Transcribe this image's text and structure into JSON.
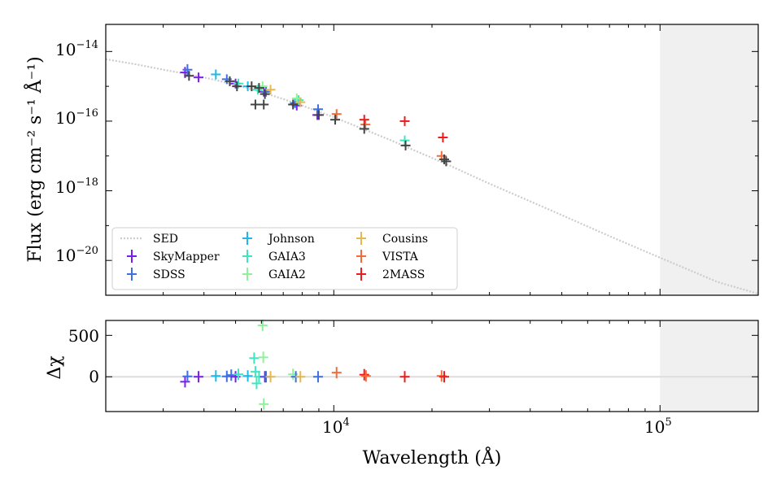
{
  "chart_data": [
    {
      "type": "scatter",
      "panel": "top",
      "xlabel": "Wavelength (Å)",
      "ylabel": "Flux (erg cm⁻² s⁻¹ Å⁻¹)",
      "x_scale": "log",
      "y_scale": "log",
      "xlim": [
        2000,
        200000
      ],
      "ylim": [
        1e-21,
        6e-14
      ],
      "grid": false,
      "legend_placement": "lower-left",
      "y_tick_labels": [
        "10",
        "10",
        "10",
        "10"
      ],
      "y_tick_exponents": [
        "−14",
        "−16",
        "−18",
        "−20"
      ],
      "y_ticks": [
        1e-14,
        1e-16,
        1e-18,
        1e-20
      ],
      "shaded_region_x": [
        100000,
        200000
      ],
      "sed_curve": {
        "name": "SED",
        "color": "#cccccc",
        "x": [
          2000,
          2500,
          3000,
          3500,
          4000,
          4500,
          5000,
          6000,
          7000,
          8000,
          10000,
          12500,
          15000,
          17500,
          22000,
          30000,
          40000,
          50000,
          70000,
          100000,
          150000,
          200000
        ],
        "y": [
          6e-15,
          4.2e-15,
          3e-15,
          2.3e-15,
          1.8e-15,
          1.4e-15,
          1.1e-15,
          6.8e-16,
          4.3e-16,
          2.8e-16,
          1.3e-16,
          5.6e-17,
          2.8e-17,
          1.5e-17,
          6e-18,
          1.6e-18,
          5e-19,
          2e-19,
          5e-20,
          1.2e-20,
          2.4e-21,
          1.1e-21
        ]
      },
      "series": [
        {
          "name": "SkyMapper",
          "color": "#7d1cf0",
          "x": [
            3500,
            3850,
            5000,
            6100,
            7700,
            8900
          ],
          "y": [
            2.5e-15,
            1.8e-15,
            1.2e-15,
            7e-16,
            2.8e-16,
            1.5e-16
          ],
          "yerr": [
            0.6,
            0.5,
            0.5,
            0.5,
            0.5,
            0.5
          ]
        },
        {
          "name": "SDSS",
          "color": "#3f6fe0",
          "x": [
            3560,
            4700,
            6200,
            7600,
            8950
          ],
          "y": [
            3e-15,
            1.6e-15,
            7e-16,
            3.3e-16,
            2.2e-16
          ],
          "yerr": [
            0.6,
            0.5,
            0.5,
            0.5,
            0.5
          ]
        },
        {
          "name": "Johnson",
          "color": "#1fb8e8",
          "x": [
            4350,
            5450
          ],
          "y": [
            2.2e-15,
            1e-15
          ],
          "yerr": [
            0.5,
            0.5
          ]
        },
        {
          "name": "GAIA3",
          "color": "#3ee6c0",
          "x": [
            5100,
            5850,
            7800,
            16500
          ],
          "y": [
            1.2e-15,
            8e-16,
            4e-16,
            2.8e-17
          ],
          "yerr": [
            0.5,
            0.5,
            0.5,
            0.5
          ]
        },
        {
          "name": "GAIA2",
          "color": "#8ff29a",
          "x": [
            6050,
            7700
          ],
          "y": [
            1e-15,
            4.5e-16
          ],
          "yerr": [
            0.5,
            0.5
          ]
        },
        {
          "name": "Cousins",
          "color": "#e8b850",
          "x": [
            6400,
            7900
          ],
          "y": [
            8e-16,
            3.5e-16
          ],
          "yerr": [
            0.5,
            0.5
          ]
        },
        {
          "name": "VISTA",
          "color": "#f46a3a",
          "x": [
            10200,
            12500,
            21400
          ],
          "y": [
            1.6e-16,
            8e-17,
            1e-17
          ],
          "yerr": [
            0.5,
            0.5,
            0.5
          ]
        },
        {
          "name": "2MASS",
          "color": "#ee1c1c",
          "x": [
            12400,
            16500,
            21600
          ],
          "y": [
            1.1e-16,
            1e-16,
            3.4e-17
          ],
          "yerr": [
            0.5,
            0.5,
            0.5
          ]
        },
        {
          "name": "",
          "color": "#444444",
          "x": [
            3600,
            4800,
            5050,
            5600,
            5900,
            6150,
            5750,
            6100,
            7500,
            9000,
            10100,
            12400,
            16600,
            21800,
            22100
          ],
          "y": [
            2e-15,
            1.4e-15,
            1e-15,
            1e-15,
            9e-16,
            6e-16,
            3e-16,
            3e-16,
            3e-16,
            1.5e-16,
            1.1e-16,
            6e-17,
            2e-17,
            8e-18,
            7e-18
          ],
          "yerr": [
            0.5,
            0.5,
            0.5,
            0.5,
            0.5,
            0.5,
            0.5,
            0.5,
            0.5,
            0.5,
            0.5,
            0.5,
            0.5,
            0.5,
            0.5
          ]
        }
      ],
      "legend": {
        "columns": [
          [
            "SED",
            "SkyMapper",
            "SDSS"
          ],
          [
            "Johnson",
            "GAIA3",
            "GAIA2"
          ],
          [
            "Cousins",
            "VISTA",
            "2MASS"
          ]
        ]
      }
    },
    {
      "type": "scatter",
      "panel": "bottom",
      "xlabel": "Wavelength (Å)",
      "ylabel": "Δχ",
      "x_scale": "log",
      "xlim": [
        2000,
        200000
      ],
      "ylim": [
        -420,
        680
      ],
      "y_ticks": [
        0,
        500
      ],
      "y_tick_labels": [
        "0",
        "500"
      ],
      "x_ticks": [
        10000,
        100000
      ],
      "x_tick_labels": [
        "10",
        "10"
      ],
      "x_tick_exponents": [
        "4",
        "5"
      ],
      "shaded_region_x": [
        100000,
        200000
      ],
      "zero_line": 0,
      "points": [
        {
          "x": 3500,
          "y": -60,
          "color": "#7d1cf0"
        },
        {
          "x": 3560,
          "y": 5,
          "color": "#3f6fe0"
        },
        {
          "x": 3850,
          "y": 0,
          "color": "#7d1cf0"
        },
        {
          "x": 4350,
          "y": 10,
          "color": "#1fb8e8"
        },
        {
          "x": 4700,
          "y": 5,
          "color": "#3f6fe0"
        },
        {
          "x": 4850,
          "y": 20,
          "color": "#3f6fe0"
        },
        {
          "x": 5000,
          "y": 0,
          "color": "#7d1cf0"
        },
        {
          "x": 5100,
          "y": 30,
          "color": "#3ee6c0"
        },
        {
          "x": 5450,
          "y": 10,
          "color": "#1fb8e8"
        },
        {
          "x": 5700,
          "y": 225,
          "color": "#3ee6c0"
        },
        {
          "x": 5750,
          "y": 60,
          "color": "#3ee6c0"
        },
        {
          "x": 5800,
          "y": -80,
          "color": "#3ee6c0"
        },
        {
          "x": 5900,
          "y": 0,
          "color": "#3ee6c0"
        },
        {
          "x": 6050,
          "y": 620,
          "color": "#8ff29a"
        },
        {
          "x": 6080,
          "y": 235,
          "color": "#8ff29a"
        },
        {
          "x": 6100,
          "y": -330,
          "color": "#8ff29a"
        },
        {
          "x": 6150,
          "y": 0,
          "color": "#7d1cf0"
        },
        {
          "x": 6200,
          "y": 0,
          "color": "#3f6fe0"
        },
        {
          "x": 6400,
          "y": 0,
          "color": "#e8b850"
        },
        {
          "x": 7500,
          "y": 30,
          "color": "#8ff29a"
        },
        {
          "x": 7650,
          "y": 0,
          "color": "#3f6fe0"
        },
        {
          "x": 7900,
          "y": 0,
          "color": "#e8b850"
        },
        {
          "x": 8950,
          "y": 0,
          "color": "#3f6fe0"
        },
        {
          "x": 10200,
          "y": 50,
          "color": "#f46a3a"
        },
        {
          "x": 12400,
          "y": 25,
          "color": "#ee1c1c"
        },
        {
          "x": 12550,
          "y": 10,
          "color": "#f46a3a"
        },
        {
          "x": 16500,
          "y": 0,
          "color": "#ee1c1c"
        },
        {
          "x": 21400,
          "y": 10,
          "color": "#f46a3a"
        },
        {
          "x": 21800,
          "y": 0,
          "color": "#ee1c1c"
        }
      ]
    }
  ]
}
